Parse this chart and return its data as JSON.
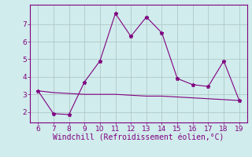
{
  "x": [
    6,
    7,
    8,
    9,
    10,
    11,
    12,
    13,
    14,
    15,
    16,
    17,
    18,
    19
  ],
  "y_line1": [
    3.2,
    1.9,
    1.85,
    3.7,
    4.9,
    7.6,
    6.3,
    7.4,
    6.5,
    3.9,
    3.55,
    3.45,
    4.9,
    2.65
  ],
  "y_line2": [
    3.2,
    3.1,
    3.05,
    3.0,
    3.0,
    3.0,
    2.95,
    2.9,
    2.9,
    2.85,
    2.8,
    2.75,
    2.7,
    2.65
  ],
  "line_color": "#800080",
  "bg_color": "#d0ecec",
  "grid_color": "#b0c8c8",
  "xlabel": "Windchill (Refroidissement éolien,°C)",
  "xlim": [
    5.5,
    19.5
  ],
  "ylim": [
    1.4,
    8.1
  ],
  "yticks": [
    2,
    3,
    4,
    5,
    6,
    7
  ],
  "xticks": [
    6,
    7,
    8,
    9,
    10,
    11,
    12,
    13,
    14,
    15,
    16,
    17,
    18,
    19
  ],
  "tick_fontsize": 6.5,
  "xlabel_fontsize": 7,
  "marker": "*",
  "marker_size": 3.5,
  "line_width": 0.8
}
